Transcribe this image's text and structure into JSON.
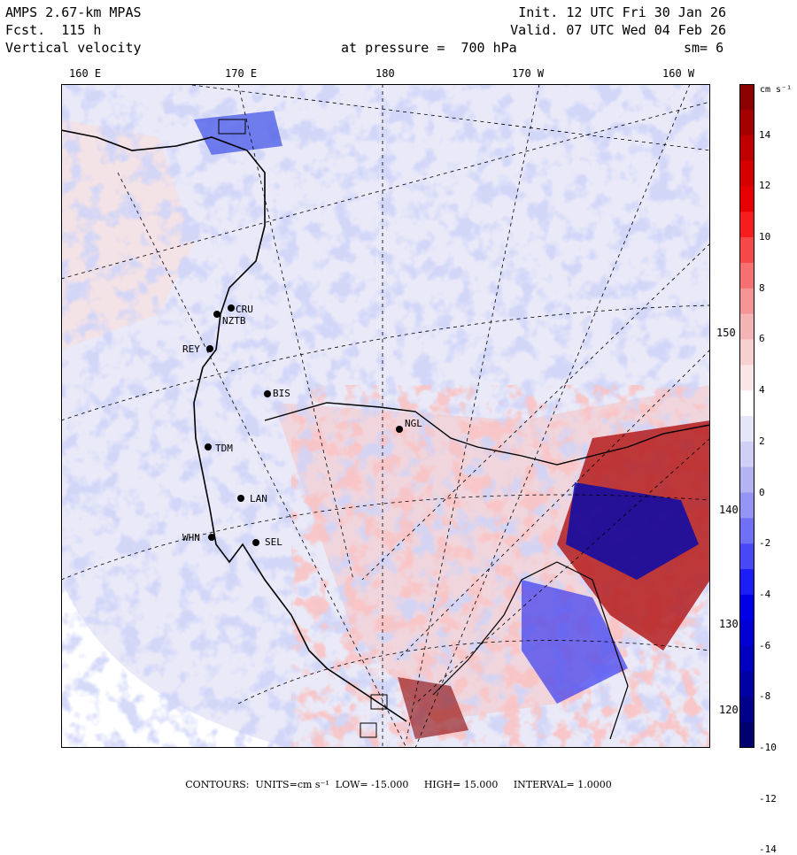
{
  "header": {
    "model": "AMPS 2.67-km MPAS",
    "fcst": "Fcst.  115 h",
    "field": "Vertical velocity",
    "init": "Init. 12 UTC Fri 30 Jan 26",
    "valid": "Valid. 07 UTC Wed 04 Feb 26",
    "level": "at pressure =  700 hPa",
    "smooth": "sm= 6"
  },
  "longitude_labels": [
    "160 E",
    "170 E",
    "180",
    "170 W",
    "160 W"
  ],
  "latitude_labels": [
    "150 W",
    "140 W",
    "130 W",
    "120 W"
  ],
  "colorbar": {
    "unit": "cm s⁻¹",
    "ticks": [
      "14",
      "12",
      "10",
      "8",
      "6",
      "4",
      "2",
      "0",
      "-2",
      "-4",
      "-6",
      "-8",
      "-10",
      "-12",
      "-14"
    ],
    "colors": [
      "#8b0000",
      "#a50000",
      "#be0000",
      "#d40000",
      "#e60000",
      "#f51d1d",
      "#f54848",
      "#f57070",
      "#f59494",
      "#f5b4b4",
      "#f7d0d0",
      "#fae6e6",
      "#ffffff",
      "#e6e6fa",
      "#d0d0f7",
      "#b4b4f5",
      "#9494f5",
      "#7070f5",
      "#4848f5",
      "#1d1df5",
      "#0000e6",
      "#0000d4",
      "#0000be",
      "#0000a5",
      "#00008b",
      "#00006e"
    ]
  },
  "stations": [
    {
      "id": "cru",
      "label": "CRU"
    },
    {
      "id": "nztb",
      "label": "NZTB"
    },
    {
      "id": "rey",
      "label": "REY"
    },
    {
      "id": "bis",
      "label": "BIS"
    },
    {
      "id": "ngl",
      "label": "NGL"
    },
    {
      "id": "tdm",
      "label": "TDM"
    },
    {
      "id": "lan",
      "label": "LAN"
    },
    {
      "id": "whn",
      "label": "WHN"
    },
    {
      "id": "sel",
      "label": "SEL"
    }
  ],
  "footer": {
    "contours": "CONTOURS:",
    "units": "UNITS=cm s⁻¹",
    "low": "LOW= -15.000",
    "high": "HIGH= 15.000",
    "interval": "INTERVAL=  1.0000"
  }
}
